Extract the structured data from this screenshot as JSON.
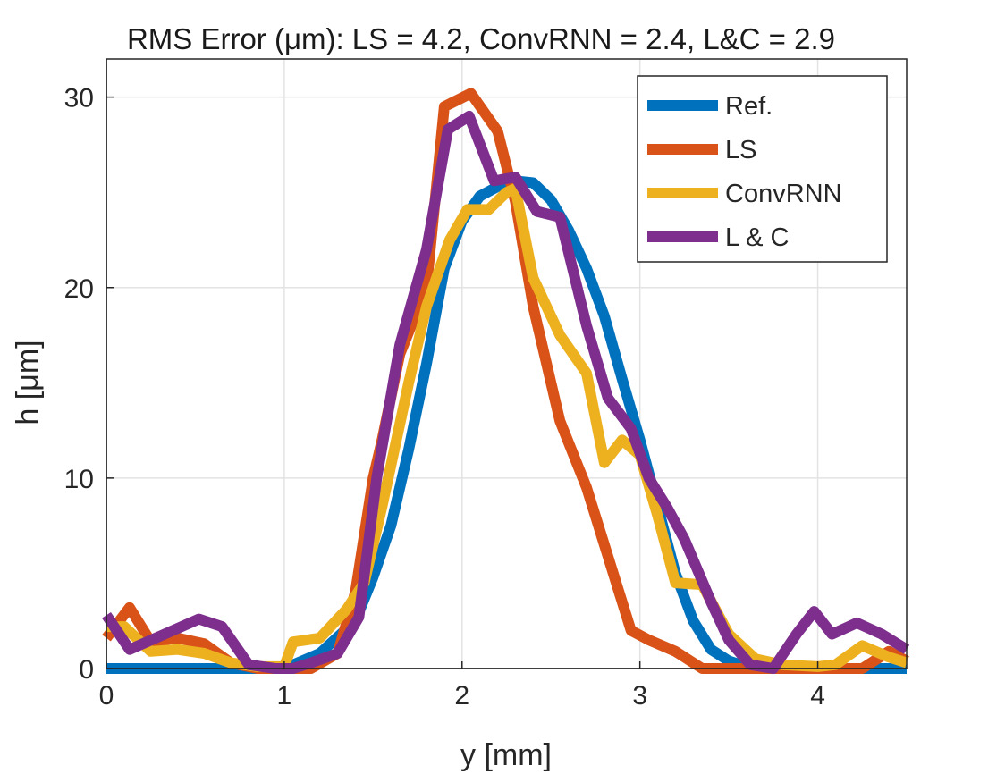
{
  "chart_data": {
    "type": "line",
    "title": "RMS Error (μm): LS = 4.2, ConvRNN = 2.4, L&C = 2.9",
    "xlabel": "y [mm]",
    "ylabel": "h [μm]",
    "xlim": [
      0,
      4.5
    ],
    "ylim": [
      0,
      32
    ],
    "xticks": [
      0,
      1,
      2,
      3,
      4
    ],
    "yticks": [
      0,
      10,
      20,
      30
    ],
    "grid": true,
    "legend_position": "top-right",
    "series": [
      {
        "name": "Ref.",
        "color": "#0072bd",
        "x": [
          0,
          0.5,
          1.0,
          1.2,
          1.4,
          1.5,
          1.6,
          1.7,
          1.8,
          1.9,
          2.0,
          2.1,
          2.2,
          2.3,
          2.4,
          2.5,
          2.6,
          2.7,
          2.8,
          2.9,
          3.0,
          3.1,
          3.2,
          3.3,
          3.4,
          3.5,
          3.6,
          3.7,
          3.8,
          4.0,
          4.5
        ],
        "y": [
          0,
          0,
          0,
          0.8,
          2.5,
          4.8,
          7.5,
          11.5,
          16.0,
          21.0,
          23.5,
          24.8,
          25.3,
          25.6,
          25.5,
          24.6,
          23.0,
          21.0,
          18.5,
          15.2,
          12.0,
          8.5,
          5.0,
          2.5,
          1.0,
          0.4,
          0.1,
          0,
          0,
          0,
          0
        ]
      },
      {
        "name": "LS",
        "color": "#d95319",
        "x": [
          0,
          0.13,
          0.25,
          0.4,
          0.55,
          0.7,
          0.85,
          1.0,
          1.15,
          1.3,
          1.4,
          1.5,
          1.55,
          1.65,
          1.8,
          1.9,
          2.05,
          2.2,
          2.3,
          2.4,
          2.55,
          2.7,
          2.85,
          2.95,
          3.05,
          3.2,
          3.35,
          3.5,
          3.7,
          4.0,
          4.25,
          4.4,
          4.5
        ],
        "y": [
          1.6,
          3.2,
          1.4,
          1.6,
          1.3,
          0.3,
          0,
          0,
          0,
          0.8,
          4.0,
          10.0,
          12.0,
          16.5,
          20.0,
          29.5,
          30.2,
          28.2,
          24.5,
          19.0,
          13.0,
          9.5,
          5.0,
          2.0,
          1.5,
          0.9,
          0,
          0,
          0,
          0,
          0,
          0.9,
          0.4
        ]
      },
      {
        "name": "ConvRNN",
        "color": "#edb120",
        "x": [
          0,
          0.1,
          0.25,
          0.4,
          0.55,
          0.7,
          0.85,
          1.0,
          1.05,
          1.2,
          1.35,
          1.45,
          1.55,
          1.7,
          1.8,
          1.93,
          2.03,
          2.15,
          2.25,
          2.3,
          2.4,
          2.55,
          2.7,
          2.8,
          2.9,
          3.0,
          3.1,
          3.2,
          3.35,
          3.5,
          3.65,
          3.8,
          4.0,
          4.1,
          4.25,
          4.4,
          4.5
        ],
        "y": [
          2.2,
          2.2,
          0.9,
          1.0,
          0.8,
          0.3,
          0.1,
          0.1,
          1.4,
          1.6,
          3.1,
          4.5,
          8.5,
          15.0,
          19.0,
          22.5,
          24.1,
          24.1,
          25.0,
          25.2,
          20.5,
          17.5,
          15.5,
          10.8,
          12.0,
          11.2,
          8.0,
          4.5,
          4.4,
          1.8,
          0.5,
          0.2,
          0.1,
          0.2,
          1.2,
          0.6,
          0.3
        ]
      },
      {
        "name": "L & C",
        "color": "#7e2f8e",
        "x": [
          0,
          0.13,
          0.35,
          0.52,
          0.65,
          0.8,
          0.95,
          1.05,
          1.15,
          1.3,
          1.42,
          1.52,
          1.65,
          1.8,
          1.92,
          2.04,
          2.18,
          2.3,
          2.42,
          2.55,
          2.7,
          2.82,
          2.95,
          3.05,
          3.15,
          3.25,
          3.4,
          3.5,
          3.62,
          3.75,
          3.88,
          3.98,
          4.08,
          4.22,
          4.36,
          4.5
        ],
        "y": [
          2.8,
          1.0,
          1.9,
          2.6,
          2.2,
          0.2,
          0,
          0,
          0.3,
          0.8,
          2.7,
          10.0,
          17.0,
          22.0,
          28.3,
          29.0,
          25.6,
          25.8,
          24.0,
          23.7,
          18.0,
          14.2,
          12.6,
          10.0,
          8.5,
          6.8,
          3.5,
          1.5,
          0.2,
          0,
          1.8,
          3.0,
          1.8,
          2.4,
          1.8,
          1.0
        ]
      }
    ]
  }
}
